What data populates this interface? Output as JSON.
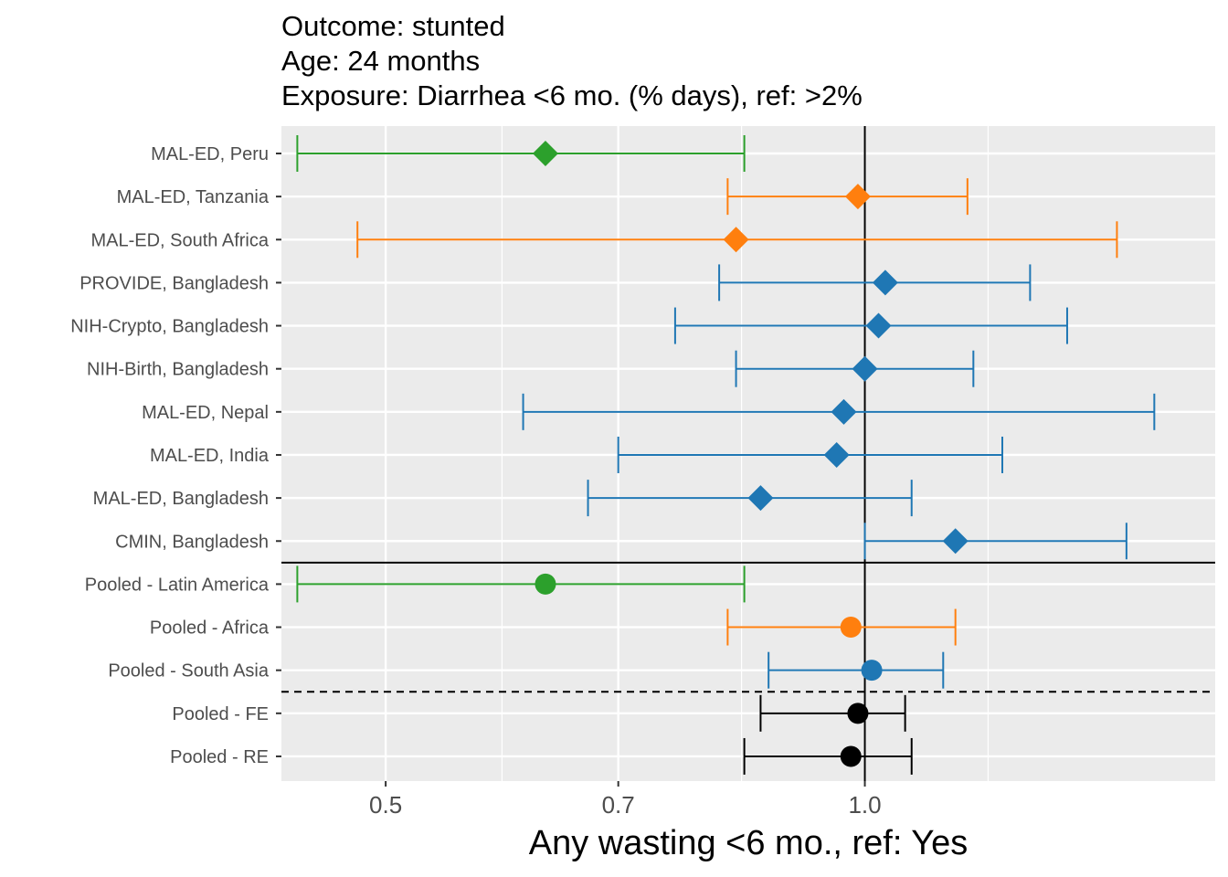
{
  "title_lines": [
    "Outcome: stunted",
    "Age: 24 months",
    "Exposure: Diarrhea <6 mo. (% days), ref: >2%"
  ],
  "colors": {
    "latin_america": "#2ca02c",
    "africa": "#ff7f0e",
    "south_asia": "#1f77b4",
    "pooled": "#000000",
    "panel_bg": "#ebebeb",
    "grid": "#ffffff"
  },
  "chart_data": {
    "type": "forest",
    "xlabel": "Any wasting  <6 mo., ref: Yes",
    "x_scale": "log",
    "xlim": [
      0.43,
      1.66
    ],
    "x_ticks": [
      0.5,
      0.7,
      1.0
    ],
    "x_tick_labels": [
      "0.5",
      "0.7",
      "1.0"
    ],
    "reference_line": 1.0,
    "rows": [
      {
        "label": "MAL-ED, Peru",
        "est": 0.63,
        "lower": 0.44,
        "upper": 0.84,
        "region": "latin_america",
        "shape": "diamond"
      },
      {
        "label": "MAL-ED, Tanzania",
        "est": 0.99,
        "lower": 0.82,
        "upper": 1.16,
        "region": "africa",
        "shape": "diamond"
      },
      {
        "label": "MAL-ED, South Africa",
        "est": 0.83,
        "lower": 0.48,
        "upper": 1.44,
        "region": "africa",
        "shape": "diamond"
      },
      {
        "label": "PROVIDE, Bangladesh",
        "est": 1.03,
        "lower": 0.81,
        "upper": 1.27,
        "region": "south_asia",
        "shape": "diamond"
      },
      {
        "label": "NIH-Crypto, Bangladesh",
        "est": 1.02,
        "lower": 0.76,
        "upper": 1.34,
        "region": "south_asia",
        "shape": "diamond"
      },
      {
        "label": "NIH-Birth, Bangladesh",
        "est": 1.0,
        "lower": 0.83,
        "upper": 1.17,
        "region": "south_asia",
        "shape": "diamond"
      },
      {
        "label": "MAL-ED, Nepal",
        "est": 0.97,
        "lower": 0.61,
        "upper": 1.52,
        "region": "south_asia",
        "shape": "diamond"
      },
      {
        "label": "MAL-ED, India",
        "est": 0.96,
        "lower": 0.7,
        "upper": 1.22,
        "region": "south_asia",
        "shape": "diamond"
      },
      {
        "label": "MAL-ED, Bangladesh",
        "est": 0.86,
        "lower": 0.67,
        "upper": 1.07,
        "region": "south_asia",
        "shape": "diamond"
      },
      {
        "label": "CMIN, Bangladesh",
        "est": 1.14,
        "lower": 1.0,
        "upper": 1.46,
        "region": "south_asia",
        "shape": "diamond"
      },
      {
        "label": "Pooled - Latin America",
        "est": 0.63,
        "lower": 0.44,
        "upper": 0.84,
        "region": "latin_america",
        "shape": "circle"
      },
      {
        "label": "Pooled - Africa",
        "est": 0.98,
        "lower": 0.82,
        "upper": 1.14,
        "region": "africa",
        "shape": "circle"
      },
      {
        "label": "Pooled - South Asia",
        "est": 1.01,
        "lower": 0.87,
        "upper": 1.12,
        "region": "south_asia",
        "shape": "circle"
      },
      {
        "label": "Pooled - FE",
        "est": 0.99,
        "lower": 0.86,
        "upper": 1.06,
        "region": "pooled",
        "shape": "circle"
      },
      {
        "label": "Pooled - RE",
        "est": 0.98,
        "lower": 0.84,
        "upper": 1.07,
        "region": "pooled",
        "shape": "circle"
      }
    ],
    "solid_separator_after": 10,
    "dashed_separator_after": 13
  }
}
